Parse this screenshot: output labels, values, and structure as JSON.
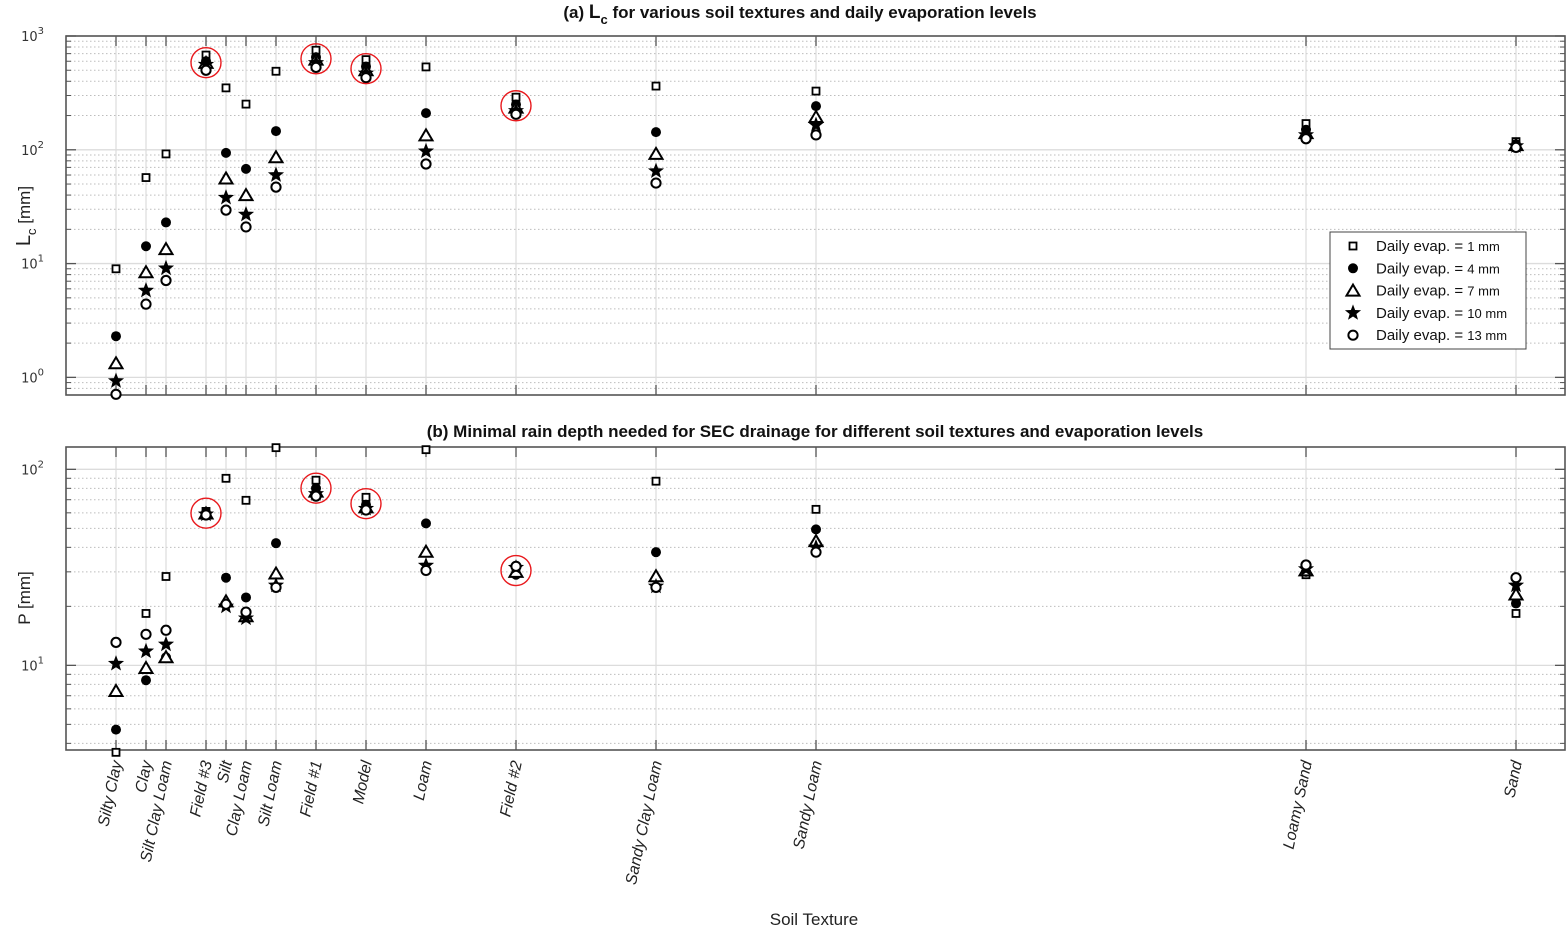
{
  "chart_data": [
    {
      "type": "scatter",
      "id": "a",
      "title_prefix": "(a)",
      "title_symbol": "L",
      "title_subscript": "c",
      "title_rest": "for various soil textures and daily evaporation levels",
      "ylabel_symbol": "L",
      "ylabel_subscript": "c",
      "ylabel_unit": "[mm]",
      "yscale": "log",
      "ylim": [
        0.7,
        1000
      ],
      "yticks": [
        {
          "base": "10",
          "exp": "0",
          "value": 1
        },
        {
          "base": "10",
          "exp": "1",
          "value": 10
        },
        {
          "base": "10",
          "exp": "2",
          "value": 100
        },
        {
          "base": "10",
          "exp": "3",
          "value": 1000
        }
      ],
      "grid": true,
      "legend_position": "right",
      "highlighted_categories": [
        "Field #3",
        "Field #1",
        "Model",
        "Field #2"
      ],
      "series": [
        {
          "name": "Daily evap. = 1 mm",
          "label_main": "Daily evap. =",
          "label_num": "1 mm",
          "marker": "square-open",
          "values": [
            9,
            57,
            92,
            680,
            350,
            252,
            490,
            750,
            620,
            535,
            290,
            363,
            328,
            170,
            118
          ]
        },
        {
          "name": "Daily evap. = 4 mm",
          "label_main": "Daily evap. =",
          "label_num": "4 mm",
          "marker": "circle-filled",
          "values": [
            2.3,
            14.2,
            23,
            600,
            94,
            68,
            146,
            650,
            540,
            210,
            250,
            143,
            242,
            150,
            112
          ]
        },
        {
          "name": "Daily evap. = 7 mm",
          "label_main": "Daily evap. =",
          "label_num": "7 mm",
          "marker": "triangle-open",
          "values": [
            1.33,
            8.4,
            13.4,
            580,
            56,
            40,
            86,
            620,
            500,
            134,
            235,
            92,
            194,
            140,
            110
          ]
        },
        {
          "name": "Daily evap. = 10 mm",
          "label_main": "Daily evap. =",
          "label_num": "10 mm",
          "marker": "star-filled",
          "values": [
            0.93,
            5.8,
            9.1,
            560,
            38,
            27,
            60,
            580,
            470,
            97,
            220,
            65,
            165,
            135,
            108
          ]
        },
        {
          "name": "Daily evap. = 13 mm",
          "label_main": "Daily evap. =",
          "label_num": "13 mm",
          "marker": "circle-open",
          "values": [
            0.71,
            4.4,
            7.1,
            500,
            29.5,
            21,
            47,
            530,
            430,
            75,
            205,
            51,
            135,
            125,
            105
          ]
        }
      ]
    },
    {
      "type": "scatter",
      "id": "b",
      "title": "(b) Minimal rain depth needed for SEC drainage for different soil textures and evaporation levels",
      "ylabel": "P [mm]",
      "yscale": "log",
      "ylim": [
        3.7,
        130
      ],
      "yticks": [
        {
          "base": "10",
          "exp": "1",
          "value": 10
        },
        {
          "base": "10",
          "exp": "2",
          "value": 100
        }
      ],
      "grid": true,
      "highlighted_categories": [
        "Field #3",
        "Field #1",
        "Model",
        "Field #2"
      ],
      "series": [
        {
          "name": "Daily evap. = 1 mm",
          "marker": "square-open",
          "values": [
            3.6,
            18.4,
            28.4,
            61,
            90,
            69.5,
            129,
            88,
            72,
            126,
            31,
            87,
            62.5,
            29,
            18.4
          ]
        },
        {
          "name": "Daily evap. = 4 mm",
          "marker": "circle-filled",
          "values": [
            4.7,
            8.4,
            11,
            60,
            28,
            22.2,
            42,
            80,
            66,
            53,
            29,
            37.8,
            49.4,
            30,
            20.7
          ]
        },
        {
          "name": "Daily evap. = 7 mm",
          "marker": "triangle-open",
          "values": [
            7.4,
            9.7,
            11,
            59.5,
            21.2,
            17.8,
            29.4,
            77,
            64,
            38,
            30,
            28.5,
            43,
            30.5,
            23
          ]
        },
        {
          "name": "Daily evap. = 10 mm",
          "marker": "star-filled",
          "values": [
            10.2,
            11.8,
            12.8,
            59,
            20,
            17.4,
            25.6,
            75,
            63,
            32.3,
            31.5,
            25.3,
            40,
            31,
            25.6
          ]
        },
        {
          "name": "Daily evap. = 13 mm",
          "marker": "circle-open",
          "values": [
            13.1,
            14.4,
            15.1,
            58.5,
            20.5,
            18.7,
            25,
            73,
            62,
            30.5,
            32,
            25,
            37.8,
            32.5,
            28
          ]
        }
      ]
    }
  ],
  "categories": [
    "Silty Clay",
    "Clay",
    "Silt Clay Loam",
    "Field #3",
    "Silt",
    "Clay Loam",
    "Silt Loam",
    "Field #1",
    "Model",
    "Loam",
    "Field #2",
    "Sandy Clay Loam",
    "Sandy Loam",
    "Loamy Sand",
    "Sand"
  ],
  "xlabel": "Soil Texture",
  "colors": {
    "marker": "#000000",
    "highlight": "#e8181c",
    "axis": "#555555",
    "grid_major": "#dcdcdc",
    "grid_minor": "#bdbdbd"
  }
}
